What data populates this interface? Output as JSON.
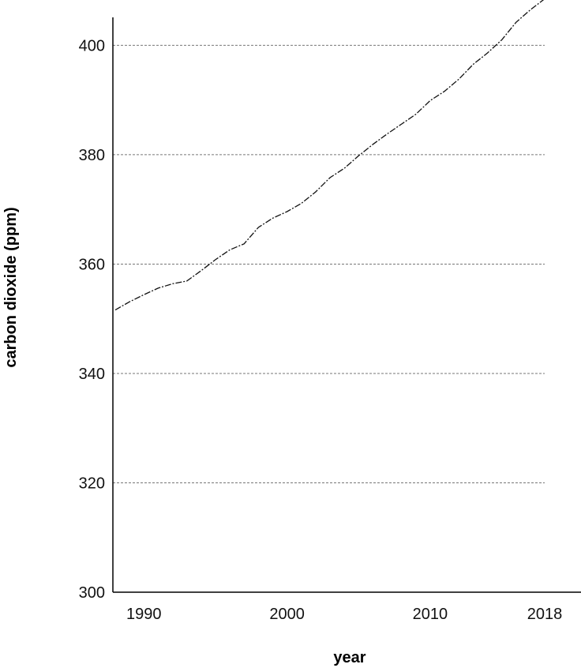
{
  "chart_data": {
    "type": "line",
    "xlabel": "year",
    "ylabel": "carbon dioxide (ppm)",
    "xlim": [
      1988,
      2018
    ],
    "ylim": [
      300,
      405.4
    ],
    "x_ticks": [
      {
        "value": 1990,
        "label": "1990"
      },
      {
        "value": 2000,
        "label": "2000"
      },
      {
        "value": 2010,
        "label": "2010"
      },
      {
        "value": 2018,
        "label": "2018"
      }
    ],
    "y_ticks": [
      {
        "value": 300,
        "label": "300"
      },
      {
        "value": 320,
        "label": "320"
      },
      {
        "value": 340,
        "label": "340"
      },
      {
        "value": 360,
        "label": "360"
      },
      {
        "value": 380,
        "label": "380"
      },
      {
        "value": 400,
        "label": "400"
      }
    ],
    "grid": "horizontal dashed at 320–400",
    "line_color": "#111111",
    "series": [
      {
        "x": [
          1988,
          1989,
          1990,
          1991,
          1992,
          1993,
          1994,
          1995,
          1996,
          1997,
          1998,
          1999,
          2000,
          2001,
          2002,
          2003,
          2004,
          2005,
          2006,
          2007,
          2008,
          2009,
          2010,
          2011,
          2012,
          2013,
          2014,
          2015,
          2016,
          2017,
          2018
        ],
        "values": [
          351.6,
          353.1,
          354.4,
          355.6,
          356.4,
          356.9,
          358.8,
          360.8,
          362.6,
          363.7,
          366.7,
          368.4,
          369.6,
          371.1,
          373.2,
          375.8,
          377.5,
          379.8,
          381.9,
          383.8,
          385.6,
          387.4,
          389.9,
          391.6,
          393.8,
          396.5,
          398.6,
          401.0,
          404.2,
          406.5,
          408.5
        ]
      }
    ]
  }
}
